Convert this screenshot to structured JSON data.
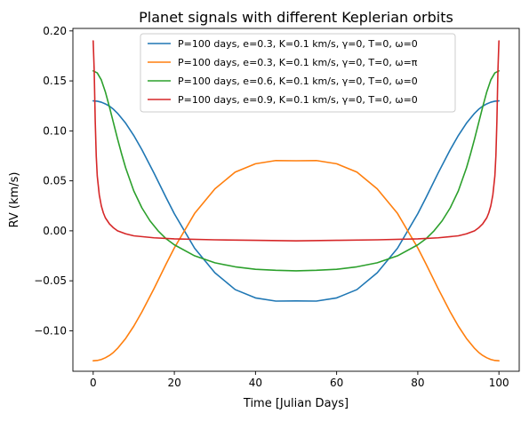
{
  "chart_data": {
    "type": "line",
    "title": "Planet signals with different Keplerian orbits",
    "xlabel": "Time [Julian Days]",
    "ylabel": "RV (km/s)",
    "xlim": [
      -5,
      105
    ],
    "ylim": [
      -0.1405,
      0.2025
    ],
    "xticks": [
      0,
      20,
      40,
      60,
      80,
      100
    ],
    "xtick_labels": [
      "0",
      "20",
      "40",
      "60",
      "80",
      "100"
    ],
    "yticks": [
      -0.1,
      -0.05,
      0.0,
      0.05,
      0.1,
      0.15,
      0.2
    ],
    "ytick_labels": [
      "−0.10",
      "−0.05",
      "0.00",
      "0.05",
      "0.10",
      "0.15",
      "0.20"
    ],
    "grid": false,
    "legend_position": "top-center",
    "series": [
      {
        "name": "P=100 days, e=0.3, K=0.1 km/s, γ=0, T=0, ω=0",
        "color": "#1f77b4",
        "x": [
          0,
          1,
          2,
          3,
          4,
          5,
          6,
          8,
          10,
          12,
          15,
          18,
          20,
          25,
          30,
          35,
          40,
          45,
          50,
          55,
          60,
          65,
          70,
          75,
          80,
          82,
          85,
          88,
          90,
          92,
          94,
          95,
          96,
          97,
          98,
          99,
          100
        ],
        "y": [
          0.13,
          0.1297,
          0.1287,
          0.127,
          0.1247,
          0.1216,
          0.1176,
          0.1077,
          0.0954,
          0.0812,
          0.0577,
          0.033,
          0.0171,
          -0.0174,
          -0.042,
          -0.0588,
          -0.0671,
          -0.0703,
          -0.0701,
          -0.0703,
          -0.0671,
          -0.0588,
          -0.042,
          -0.0174,
          0.0171,
          0.033,
          0.0577,
          0.0812,
          0.0954,
          0.1077,
          0.1176,
          0.1216,
          0.1247,
          0.127,
          0.1287,
          0.1297,
          0.13
        ]
      },
      {
        "name": "P=100 days, e=0.3, K=0.1 km/s, γ=0, T=0, ω=π",
        "color": "#ff7f0e",
        "x": [
          0,
          1,
          2,
          3,
          4,
          5,
          6,
          8,
          10,
          12,
          15,
          18,
          20,
          25,
          30,
          35,
          40,
          45,
          50,
          55,
          60,
          65,
          70,
          75,
          80,
          82,
          85,
          88,
          90,
          92,
          94,
          95,
          96,
          97,
          98,
          99,
          100
        ],
        "y": [
          -0.13,
          -0.1297,
          -0.1287,
          -0.127,
          -0.1247,
          -0.1216,
          -0.1176,
          -0.1077,
          -0.0954,
          -0.0812,
          -0.0577,
          -0.033,
          -0.0171,
          0.0174,
          0.042,
          0.0588,
          0.0671,
          0.0703,
          0.0701,
          0.0703,
          0.0671,
          0.0588,
          0.042,
          0.0174,
          -0.0171,
          -0.033,
          -0.0577,
          -0.0812,
          -0.0954,
          -0.1077,
          -0.1176,
          -0.1216,
          -0.1247,
          -0.127,
          -0.1287,
          -0.1297,
          -0.13
        ]
      },
      {
        "name": "P=100 days, e=0.6, K=0.1 km/s, γ=0, T=0, ω=0",
        "color": "#2ca02c",
        "x": [
          0,
          1,
          2,
          3,
          4,
          5,
          6,
          7,
          8,
          10,
          12,
          14,
          16,
          18,
          20,
          25,
          30,
          35,
          40,
          45,
          50,
          55,
          60,
          65,
          70,
          75,
          80,
          82,
          84,
          86,
          88,
          90,
          92,
          93,
          94,
          95,
          96,
          97,
          98,
          99,
          100
        ],
        "y": [
          0.16,
          0.158,
          0.151,
          0.139,
          0.124,
          0.108,
          0.092,
          0.077,
          0.063,
          0.04,
          0.023,
          0.01,
          0.0,
          -0.008,
          -0.014,
          -0.025,
          -0.032,
          -0.036,
          -0.0385,
          -0.0395,
          -0.04,
          -0.0395,
          -0.0385,
          -0.036,
          -0.032,
          -0.025,
          -0.014,
          -0.008,
          0.0,
          0.01,
          0.023,
          0.04,
          0.063,
          0.077,
          0.092,
          0.108,
          0.124,
          0.139,
          0.151,
          0.158,
          0.16
        ]
      },
      {
        "name": "P=100 days, e=0.9, K=0.1 km/s, γ=0, T=0, ω=0",
        "color": "#d62728",
        "x": [
          0,
          0.25,
          0.5,
          0.75,
          1,
          1.5,
          2,
          2.5,
          3,
          4,
          5,
          6,
          8,
          10,
          15,
          20,
          30,
          40,
          50,
          60,
          70,
          80,
          85,
          90,
          92,
          94,
          95,
          96,
          97,
          97.5,
          98,
          98.5,
          99,
          99.25,
          99.5,
          99.75,
          100
        ],
        "y": [
          0.19,
          0.16,
          0.11,
          0.075,
          0.055,
          0.036,
          0.025,
          0.018,
          0.013,
          0.007,
          0.003,
          0.0,
          -0.003,
          -0.005,
          -0.007,
          -0.008,
          -0.009,
          -0.0095,
          -0.01,
          -0.0095,
          -0.009,
          -0.008,
          -0.007,
          -0.005,
          -0.003,
          0.0,
          0.003,
          0.007,
          0.013,
          0.018,
          0.025,
          0.036,
          0.055,
          0.075,
          0.11,
          0.16,
          0.19
        ]
      }
    ]
  }
}
